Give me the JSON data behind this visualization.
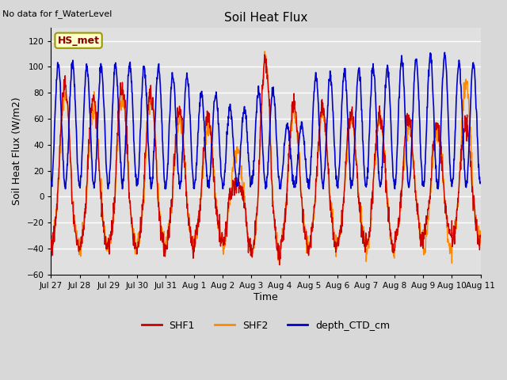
{
  "title": "Soil Heat Flux",
  "top_left_text": "No data for f_WaterLevel",
  "ylabel": "Soil Heat Flux (W/m2)",
  "xlabel": "Time",
  "ylim": [
    -60,
    130
  ],
  "yticks": [
    -60,
    -40,
    -20,
    0,
    20,
    40,
    60,
    80,
    100,
    120
  ],
  "xtick_labels": [
    "Jul 27",
    "Jul 28",
    "Jul 29",
    "Jul 30",
    "Jul 31",
    "Aug 1",
    "Aug 2",
    "Aug 3",
    "Aug 4",
    "Aug 5",
    "Aug 6",
    "Aug 7",
    "Aug 8",
    "Aug 9",
    "Aug 10",
    "Aug 11"
  ],
  "legend_labels": [
    "SHF1",
    "SHF2",
    "depth_CTD_cm"
  ],
  "legend_colors": [
    "#cc0000",
    "#ff8800",
    "#0000cc"
  ],
  "box_label": "HS_met",
  "box_facecolor": "#ffffcc",
  "box_edgecolor": "#999900",
  "box_textcolor": "#880000",
  "background_color": "#e0e0e0",
  "grid_color": "#ffffff",
  "shf1_color": "#cc0000",
  "shf2_color": "#ff8800",
  "depth_color": "#0000cc",
  "num_days": 15,
  "points_per_day": 96,
  "shf1_amp_day": [
    85,
    75,
    85,
    80,
    65,
    60,
    10,
    105,
    70,
    68,
    65,
    62,
    60,
    55,
    55
  ],
  "shf1_amp_night": [
    40,
    40,
    40,
    40,
    40,
    35,
    38,
    45,
    40,
    40,
    35,
    40,
    35,
    30,
    35
  ],
  "shf2_amp_day": [
    78,
    68,
    78,
    73,
    58,
    55,
    35,
    108,
    65,
    65,
    60,
    60,
    55,
    50,
    88
  ],
  "shf2_amp_night": [
    38,
    38,
    38,
    38,
    38,
    33,
    42,
    45,
    38,
    38,
    33,
    44,
    33,
    44,
    33
  ],
  "depth_amp_day": [
    102,
    100,
    101,
    100,
    93,
    80,
    68,
    82,
    55,
    93,
    97,
    100,
    106,
    110,
    103
  ],
  "depth_min": 8
}
